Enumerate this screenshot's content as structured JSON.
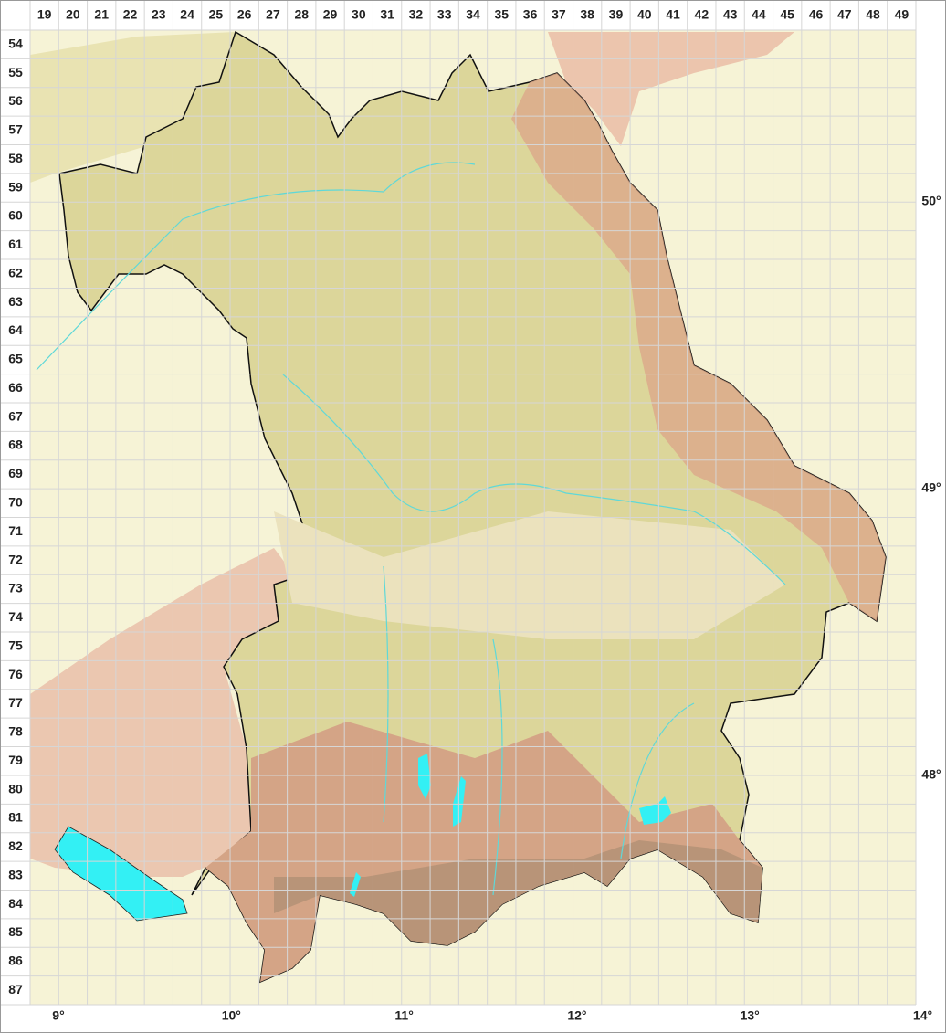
{
  "columns": [
    "19",
    "20",
    "21",
    "22",
    "23",
    "24",
    "25",
    "26",
    "27",
    "28",
    "29",
    "30",
    "31",
    "32",
    "33",
    "34",
    "35",
    "36",
    "37",
    "38",
    "39",
    "40",
    "41",
    "42",
    "43",
    "44",
    "45",
    "46",
    "47",
    "48",
    "49"
  ],
  "rows": [
    "54",
    "55",
    "56",
    "57",
    "58",
    "59",
    "60",
    "61",
    "62",
    "63",
    "64",
    "65",
    "66",
    "67",
    "68",
    "69",
    "70",
    "71",
    "72",
    "73",
    "74",
    "75",
    "76",
    "77",
    "78",
    "79",
    "80",
    "81",
    "82",
    "83",
    "84",
    "85",
    "86",
    "87"
  ],
  "latitude_labels": [
    "50°",
    "49°",
    "48°"
  ],
  "longitude_labels": [
    "9°",
    "10°",
    "11°",
    "12°",
    "13°",
    "14°"
  ]
}
